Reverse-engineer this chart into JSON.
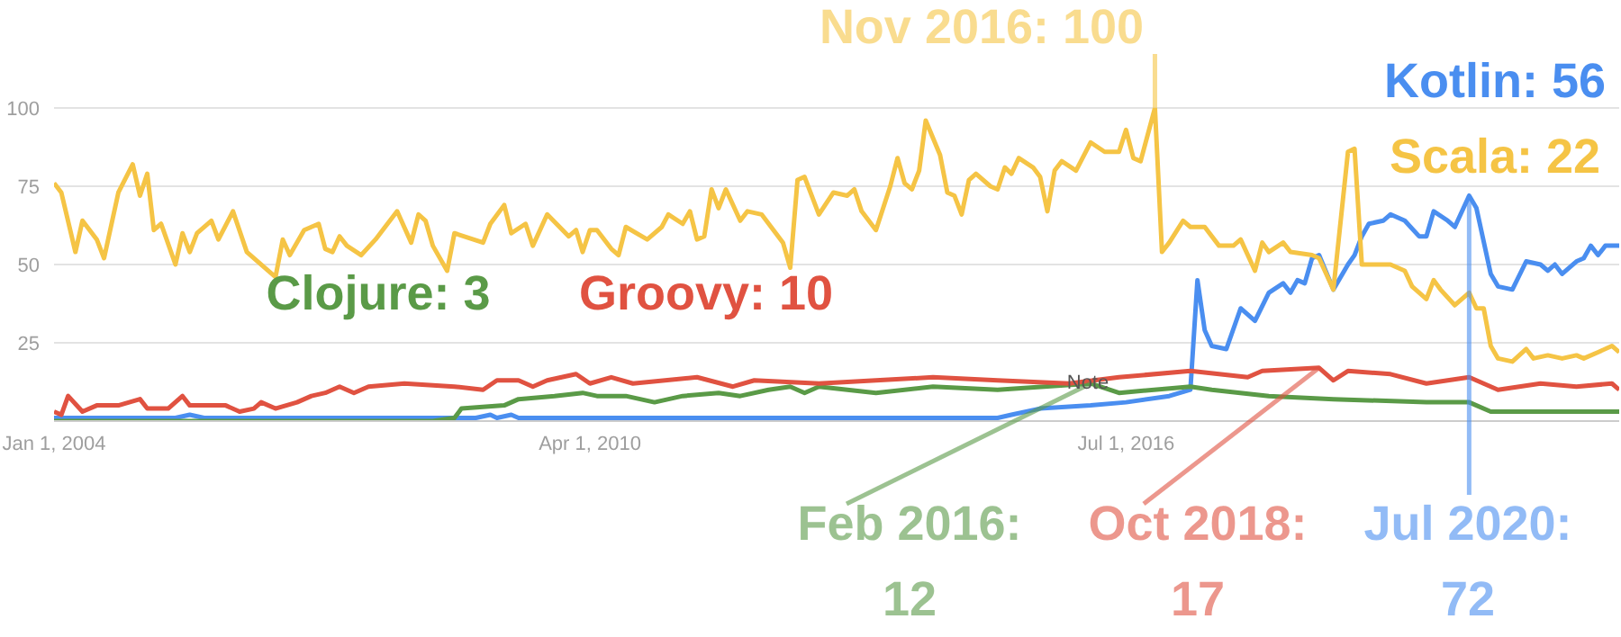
{
  "chart_data": {
    "type": "line",
    "xlim": [
      "2004-01",
      "2022-04"
    ],
    "xticks": [
      {
        "value": "2004-01-01",
        "label": "Jan 1, 2004"
      },
      {
        "value": "2010-04-01",
        "label": "Apr 1, 2010"
      },
      {
        "value": "2016-07-01",
        "label": "Jul 1, 2016"
      }
    ],
    "ylim": [
      0,
      100
    ],
    "yticks": [
      {
        "value": 0,
        "label": null
      },
      25,
      50,
      75,
      100
    ],
    "grid": "y",
    "series": [
      {
        "name": "Kotlin: 56",
        "color": "#4a8ef0",
        "x": [
          "2004-01",
          "2005-06",
          "2005-08",
          "2005-10",
          "2008-12",
          "2009-02",
          "2009-03",
          "2009-05",
          "2009-06",
          "2015-01",
          "2015-03",
          "2015-07",
          "2016-02",
          "2016-07",
          "2017-01",
          "2017-04",
          "2017-05",
          "2017-06",
          "2017-07",
          "2017-09",
          "2017-11",
          "2018-01",
          "2018-03",
          "2018-05",
          "2018-06",
          "2018-07",
          "2018-08",
          "2018-09",
          "2018-10",
          "2018-12",
          "2019-02",
          "2019-03",
          "2019-04",
          "2019-05",
          "2019-07",
          "2019-08",
          "2019-10",
          "2019-12",
          "2020-01",
          "2020-02",
          "2020-04",
          "2020-05",
          "2020-07",
          "2020-08",
          "2020-10",
          "2020-11",
          "2021-01",
          "2021-03",
          "2021-05",
          "2021-06",
          "2021-07",
          "2021-08",
          "2021-10",
          "2021-11",
          "2021-12",
          "2022-01",
          "2022-02",
          "2022-04"
        ],
        "values": [
          1,
          1,
          2,
          1,
          1,
          2,
          1,
          2,
          1,
          1,
          2,
          4,
          5,
          6,
          8,
          10,
          45,
          29,
          24,
          23,
          36,
          32,
          41,
          44,
          41,
          45,
          44,
          52,
          53,
          42,
          50,
          53,
          59,
          63,
          64,
          66,
          64,
          59,
          59,
          67,
          64,
          62,
          72,
          68,
          47,
          43,
          42,
          51,
          50,
          48,
          50,
          47,
          51,
          52,
          56,
          53,
          56,
          56
        ]
      },
      {
        "name": "Scala: 22",
        "color": "#f5c445",
        "x": [
          "2004-01",
          "2004-02",
          "2004-04",
          "2004-05",
          "2004-07",
          "2004-08",
          "2004-10",
          "2004-12",
          "2005-01",
          "2005-02",
          "2005-03",
          "2005-04",
          "2005-06",
          "2005-07",
          "2005-08",
          "2005-09",
          "2005-11",
          "2005-12",
          "2006-02",
          "2006-04",
          "2006-07",
          "2006-08",
          "2006-09",
          "2006-10",
          "2006-12",
          "2007-02",
          "2007-03",
          "2007-04",
          "2007-05",
          "2007-06",
          "2007-08",
          "2007-10",
          "2008-01",
          "2008-03",
          "2008-04",
          "2008-05",
          "2008-06",
          "2008-08",
          "2008-09",
          "2009-01",
          "2009-02",
          "2009-04",
          "2009-05",
          "2009-07",
          "2009-08",
          "2009-10",
          "2010-01",
          "2010-02",
          "2010-03",
          "2010-04",
          "2010-05",
          "2010-07",
          "2010-08",
          "2010-09",
          "2010-12",
          "2011-02",
          "2011-03",
          "2011-05",
          "2011-06",
          "2011-07",
          "2011-08",
          "2011-09",
          "2011-10",
          "2011-11",
          "2012-01",
          "2012-02",
          "2012-04",
          "2012-07",
          "2012-08",
          "2012-09",
          "2012-10",
          "2012-12",
          "2013-02",
          "2013-04",
          "2013-05",
          "2013-06",
          "2013-08",
          "2013-10",
          "2013-11",
          "2013-12",
          "2014-01",
          "2014-02",
          "2014-03",
          "2014-05",
          "2014-06",
          "2014-07",
          "2014-08",
          "2014-09",
          "2014-10",
          "2014-12",
          "2015-01",
          "2015-02",
          "2015-03",
          "2015-04",
          "2015-06",
          "2015-07",
          "2015-08",
          "2015-09",
          "2015-10",
          "2015-12",
          "2016-02",
          "2016-04",
          "2016-06",
          "2016-07",
          "2016-08",
          "2016-09",
          "2016-11",
          "2016-12",
          "2017-01",
          "2017-03",
          "2017-04",
          "2017-06",
          "2017-08",
          "2017-10",
          "2017-11",
          "2018-01",
          "2018-02",
          "2018-03",
          "2018-05",
          "2018-06",
          "2018-09",
          "2018-10",
          "2018-12",
          "2019-02",
          "2019-03",
          "2019-04",
          "2019-06",
          "2019-08",
          "2019-10",
          "2019-11",
          "2020-01",
          "2020-02",
          "2020-03",
          "2020-05",
          "2020-07",
          "2020-08",
          "2020-09",
          "2020-10",
          "2020-11",
          "2021-01",
          "2021-03",
          "2021-04",
          "2021-06",
          "2021-08",
          "2021-10",
          "2021-11",
          "2022-01",
          "2022-03",
          "2022-04"
        ],
        "values": [
          76,
          73,
          54,
          64,
          58,
          52,
          73,
          82,
          72,
          79,
          61,
          63,
          50,
          60,
          54,
          60,
          64,
          58,
          67,
          54,
          48,
          46,
          58,
          53,
          61,
          63,
          55,
          54,
          59,
          56,
          53,
          58,
          67,
          57,
          66,
          64,
          56,
          48,
          60,
          57,
          63,
          69,
          60,
          63,
          56,
          66,
          59,
          61,
          54,
          61,
          61,
          55,
          53,
          62,
          58,
          62,
          66,
          63,
          67,
          58,
          59,
          74,
          68,
          74,
          64,
          67,
          66,
          57,
          49,
          77,
          78,
          66,
          73,
          72,
          74,
          67,
          61,
          75,
          84,
          76,
          74,
          80,
          96,
          85,
          73,
          72,
          66,
          77,
          79,
          75,
          74,
          81,
          79,
          84,
          81,
          78,
          67,
          80,
          83,
          80,
          89,
          86,
          86,
          93,
          84,
          83,
          100,
          54,
          57,
          64,
          62,
          62,
          56,
          56,
          58,
          48,
          57,
          54,
          57,
          54,
          53,
          52,
          42,
          86,
          87,
          50,
          50,
          50,
          48,
          43,
          39,
          45,
          42,
          37,
          41,
          36,
          36,
          24,
          20,
          19,
          23,
          20,
          21,
          20,
          21,
          20,
          22,
          24,
          22
        ]
      },
      {
        "name": "Clojure: 3",
        "color": "#5a9a47",
        "x": [
          "2004-01",
          "2008-06",
          "2008-09",
          "2008-10",
          "2009-04",
          "2009-06",
          "2009-11",
          "2010-03",
          "2010-05",
          "2010-09",
          "2011-01",
          "2011-05",
          "2011-10",
          "2012-01",
          "2012-05",
          "2012-08",
          "2012-10",
          "2012-12",
          "2013-08",
          "2014-04",
          "2015-01",
          "2016-02",
          "2016-06",
          "2017-04",
          "2017-07",
          "2018-03",
          "2018-12",
          "2020-01",
          "2020-07",
          "2020-10",
          "2022-04"
        ],
        "values": [
          0,
          0,
          1,
          4,
          5,
          7,
          8,
          9,
          8,
          8,
          6,
          8,
          9,
          8,
          10,
          11,
          9,
          11,
          9,
          11,
          10,
          12,
          9,
          11,
          10,
          8,
          7,
          6,
          6,
          3,
          3
        ]
      },
      {
        "name": "Groovy: 10",
        "color": "#e05241",
        "x": [
          "2004-01",
          "2004-02",
          "2004-03",
          "2004-05",
          "2004-07",
          "2004-10",
          "2005-01",
          "2005-02",
          "2005-05",
          "2005-07",
          "2005-08",
          "2006-01",
          "2006-03",
          "2006-05",
          "2006-06",
          "2006-08",
          "2006-11",
          "2007-01",
          "2007-03",
          "2007-05",
          "2007-07",
          "2007-09",
          "2008-02",
          "2008-09",
          "2009-01",
          "2009-03",
          "2009-06",
          "2009-08",
          "2009-10",
          "2010-02",
          "2010-04",
          "2010-07",
          "2010-10",
          "2011-07",
          "2011-12",
          "2012-03",
          "2012-12",
          "2013-08",
          "2014-04",
          "2015-01",
          "2015-11",
          "2016-06",
          "2017-04",
          "2017-12",
          "2018-02",
          "2018-10",
          "2018-12",
          "2019-02",
          "2019-08",
          "2020-01",
          "2020-07",
          "2020-11",
          "2021-05",
          "2021-10",
          "2022-03",
          "2022-04"
        ],
        "values": [
          3,
          2,
          8,
          3,
          5,
          5,
          7,
          4,
          4,
          8,
          5,
          5,
          3,
          4,
          6,
          4,
          6,
          8,
          9,
          11,
          9,
          11,
          12,
          11,
          10,
          13,
          13,
          11,
          13,
          15,
          12,
          14,
          12,
          14,
          11,
          13,
          12,
          13,
          14,
          13,
          12,
          14,
          16,
          14,
          16,
          17,
          13,
          16,
          15,
          12,
          14,
          10,
          12,
          11,
          12,
          10
        ]
      }
    ],
    "annotations": [
      {
        "text": "Nov 2016: 100",
        "x": "2016-11",
        "y": 100
      },
      {
        "text": "Feb 2016: 12",
        "x": "2016-02",
        "y": 12
      },
      {
        "text": "Oct 2018: 17",
        "x": "2018-10",
        "y": 17
      },
      {
        "text": "Jul 2020: 72",
        "x": "2020-07",
        "y": 72
      },
      "Note"
    ]
  }
}
